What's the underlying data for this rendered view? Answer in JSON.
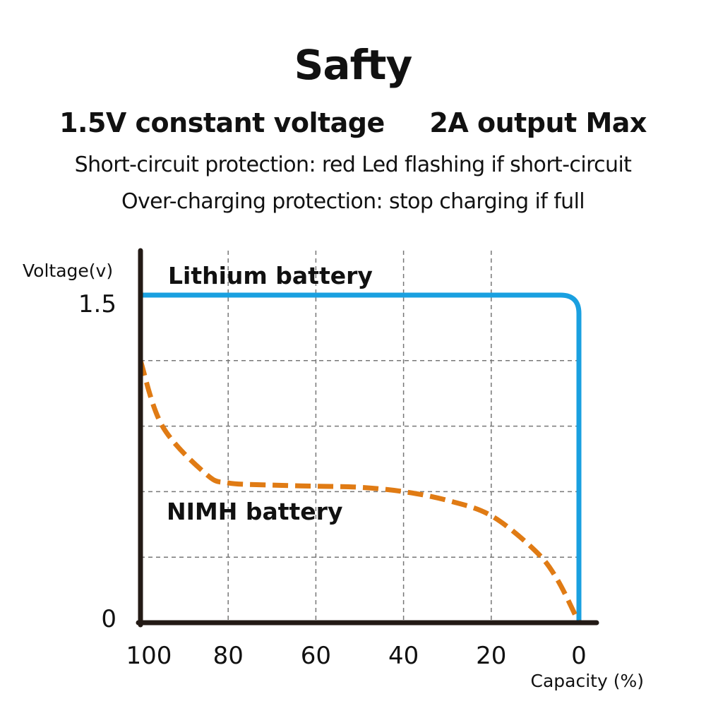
{
  "header": {
    "title": "Safty",
    "specs": "1.5V constant voltage     2A output Max",
    "features": [
      "Short-circuit protection: red Led flashing if short-circuit",
      "Over-charging protection: stop charging if full"
    ]
  },
  "chart_data": {
    "type": "line",
    "xlabel": "Capacity (%)",
    "ylabel": "Voltage(v)",
    "x_reversed": true,
    "xlim": [
      100,
      0
    ],
    "x_ticks": [
      "100",
      "80",
      "60",
      "40",
      "20",
      "0"
    ],
    "y_ticks": [
      "1.5",
      "0"
    ],
    "ylim": [
      0,
      1.5
    ],
    "grid": true,
    "series": [
      {
        "name": "Lithium battery",
        "color": "#1aa0e0",
        "style": "solid",
        "points": [
          [
            100,
            1.5
          ],
          [
            5,
            1.5
          ],
          [
            0,
            1.45
          ],
          [
            0,
            0
          ]
        ]
      },
      {
        "name": "NIMH battery",
        "color": "#e07b14",
        "style": "dashed",
        "points": [
          [
            100,
            1.2
          ],
          [
            95,
            0.9
          ],
          [
            85,
            0.68
          ],
          [
            80,
            0.64
          ],
          [
            70,
            0.63
          ],
          [
            60,
            0.625
          ],
          [
            50,
            0.62
          ],
          [
            40,
            0.6
          ],
          [
            30,
            0.56
          ],
          [
            20,
            0.49
          ],
          [
            10,
            0.33
          ],
          [
            5,
            0.2
          ],
          [
            0,
            0
          ]
        ]
      }
    ]
  }
}
